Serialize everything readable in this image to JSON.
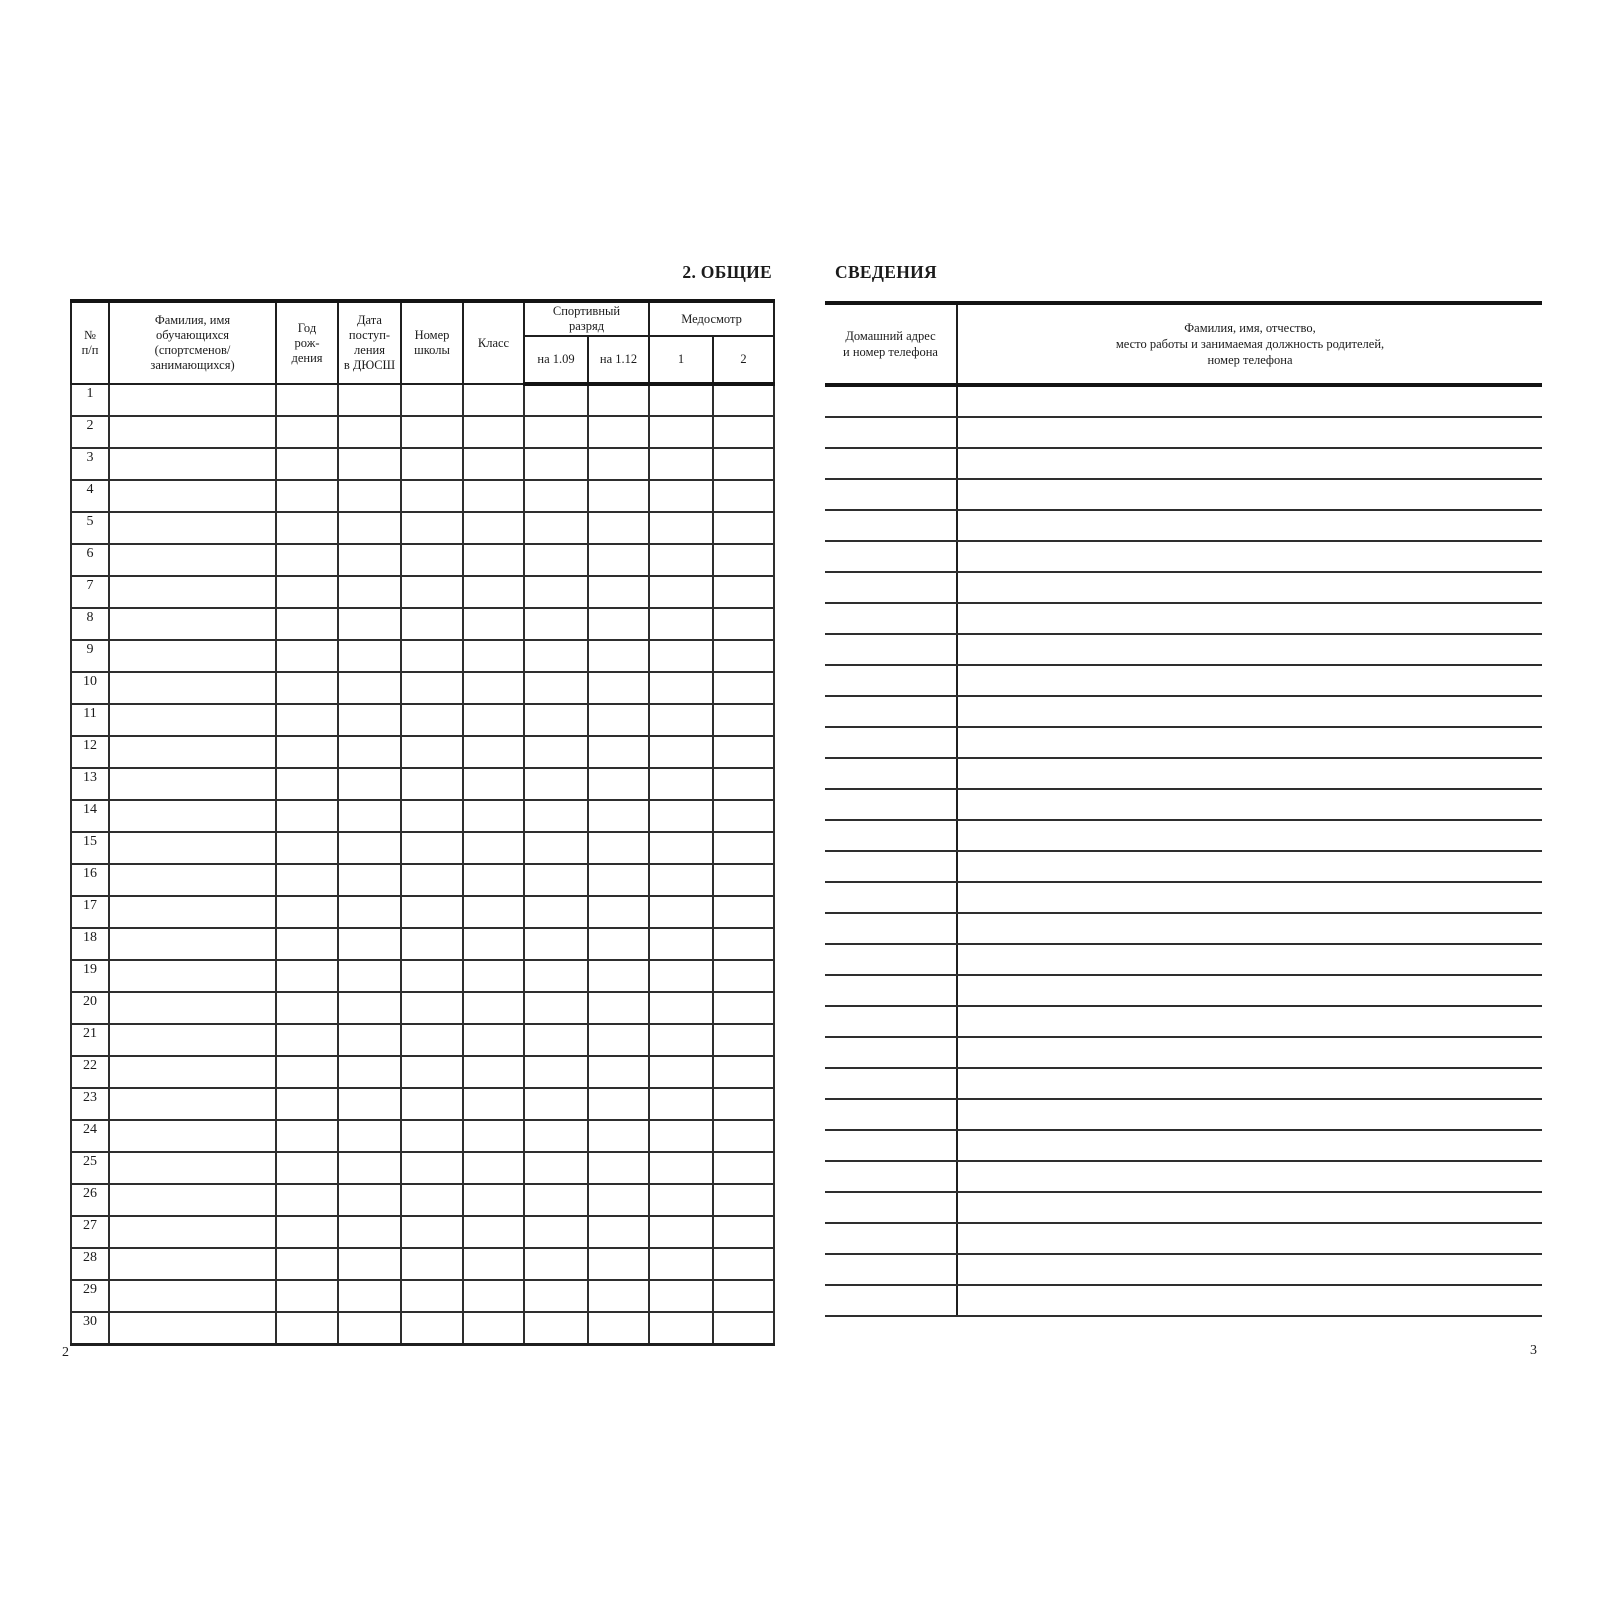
{
  "heading": {
    "left": "2. ОБЩИЕ",
    "right": "СВЕДЕНИЯ"
  },
  "students_table": {
    "col_num": "№\nп/п",
    "col_name": "Фамилия, имя\nобучающихся\n(спортсменов/\nзанимающихся)",
    "col_birth_year": "Год\nрож-\nдения",
    "col_admission": "Дата\nпоступ-\nления\nв ДЮСШ",
    "col_school": "Номер\nшколы",
    "col_class": "Класс",
    "col_sport_rank": "Спортивный\nразряд",
    "col_sport_rank_sub1": "на 1.09",
    "col_sport_rank_sub2": "на 1.12",
    "col_medical": "Медосмотр",
    "col_medical_sub1": "1",
    "col_medical_sub2": "2",
    "row_numbers": [
      "1",
      "2",
      "3",
      "4",
      "5",
      "6",
      "7",
      "8",
      "9",
      "10",
      "11",
      "12",
      "13",
      "14",
      "15",
      "16",
      "17",
      "18",
      "19",
      "20",
      "21",
      "22",
      "23",
      "24",
      "25",
      "26",
      "27",
      "28",
      "29",
      "30"
    ]
  },
  "contacts_table": {
    "col_address": "Домашний адрес\nи номер телефона",
    "col_parents": "Фамилия, имя, отчество,\nместо работы и занимаемая должность родителей,\nномер телефона",
    "row_count": 30
  },
  "footer": {
    "left_page_number": "2",
    "right_page_number": "3"
  }
}
